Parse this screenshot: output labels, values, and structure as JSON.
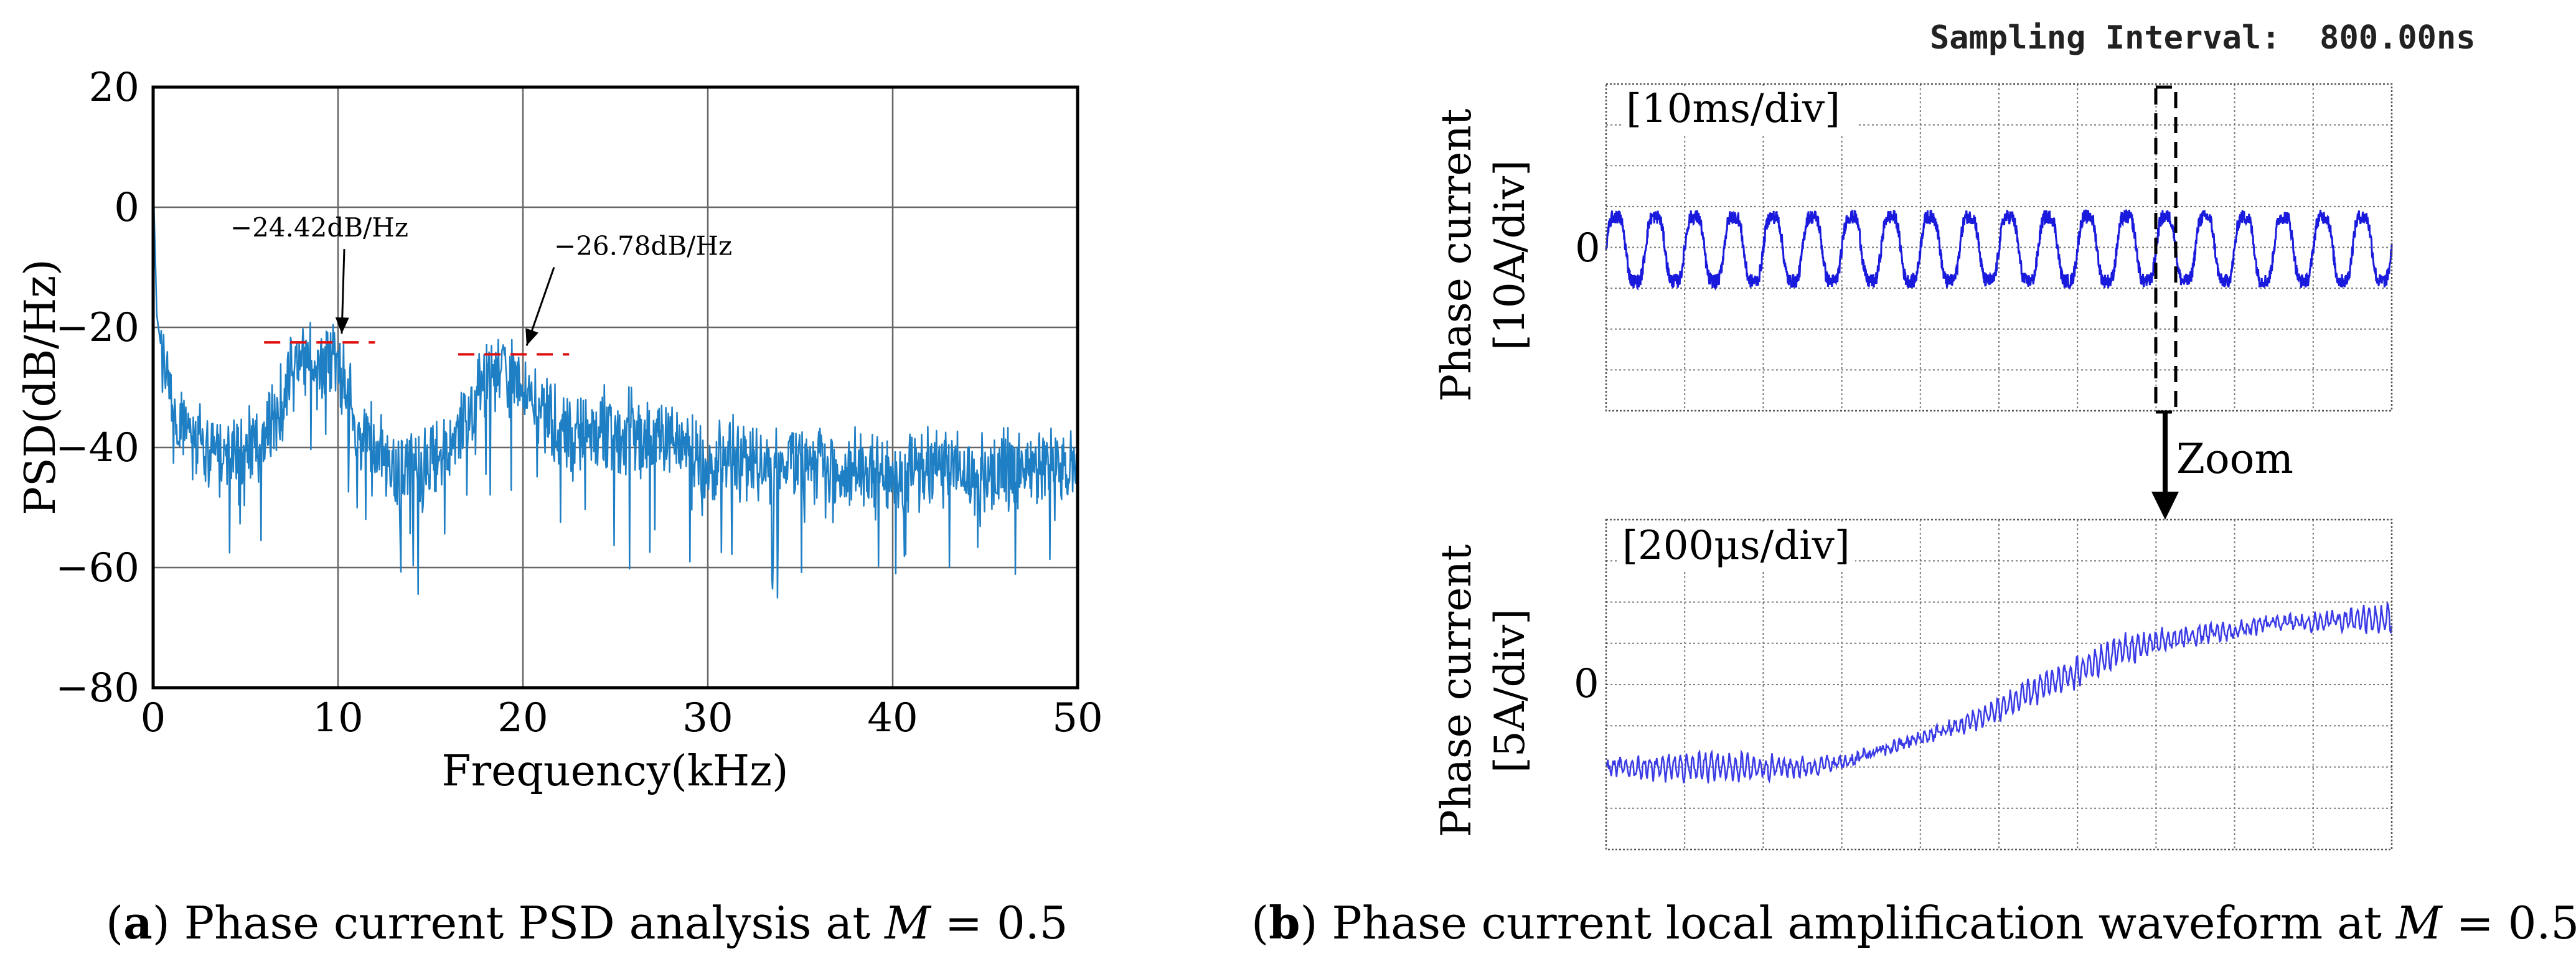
{
  "chart_data": [
    {
      "type": "line",
      "panel_label": "a",
      "title": "",
      "xlabel": "Frequency(kHz)",
      "ylabel": "PSD(dB/Hz)",
      "xlim": [
        0,
        50
      ],
      "ylim": [
        -80,
        20
      ],
      "xticks": [
        0,
        10,
        20,
        30,
        40,
        50
      ],
      "yticks": [
        20,
        0,
        -20,
        -40,
        -60,
        -80
      ],
      "xtick_labels": [
        "0",
        "10",
        "20",
        "30",
        "40",
        "50"
      ],
      "ytick_labels": [
        "20",
        "0",
        "−20",
        "−40",
        "−60",
        "−80"
      ],
      "grid": true,
      "line_color": "#1f7fc4",
      "series": [
        {
          "name": "Phase current PSD",
          "x": [
            0,
            0.2,
            0.5,
            1,
            1.5,
            2,
            3,
            4,
            5,
            6,
            7,
            7.5,
            8,
            8.5,
            9,
            9.5,
            10,
            10.5,
            11,
            12,
            13,
            14,
            15,
            16,
            17,
            18,
            19,
            20,
            21,
            22,
            23,
            24,
            25,
            26,
            27,
            28,
            29,
            30,
            32,
            34,
            36,
            38,
            40,
            42,
            44,
            46,
            48,
            50
          ],
          "y": [
            5,
            -18,
            -25,
            -33,
            -36,
            -38,
            -40,
            -41,
            -40,
            -38,
            -33,
            -28,
            -25,
            -24,
            -27,
            -25,
            -26,
            -31,
            -36,
            -40,
            -44,
            -44,
            -43,
            -40,
            -34,
            -29,
            -27,
            -30,
            -35,
            -38,
            -38,
            -37,
            -37,
            -38,
            -39,
            -40,
            -41,
            -42,
            -42,
            -43,
            -43,
            -44,
            -44,
            -43,
            -44,
            -44,
            -43,
            -43
          ]
        }
      ],
      "markers": [
        {
          "label": "−24.42dB/Hz",
          "freq_khz": 10,
          "level_db": -22.5,
          "span_khz": [
            6,
            12
          ]
        },
        {
          "label": "−26.78dB/Hz",
          "freq_khz": 20,
          "level_db": -24.5,
          "span_khz": [
            16.5,
            22.5
          ]
        }
      ]
    },
    {
      "type": "line",
      "panel_label": "b-top",
      "title": "",
      "xlabel": "",
      "ylabel_line1": "Phase current",
      "ylabel_line2": "[10A/div]",
      "scale_label": "[10ms/div]",
      "zero_label": "0",
      "divisions_x": 10,
      "divisions_y": 8,
      "line_color": "#1a1adc",
      "series": [
        {
          "name": "Phase current",
          "periods": 20,
          "amplitude_div": 1.0,
          "offset_div": 0
        }
      ]
    },
    {
      "type": "line",
      "panel_label": "b-bottom",
      "title": "",
      "xlabel": "",
      "ylabel_line1": "Phase current",
      "ylabel_line2": "[5A/div]",
      "scale_label": "[200μs/div]",
      "zero_label": "0",
      "divisions_x": 10,
      "divisions_y": 8,
      "line_color": "#3a3ae6",
      "series": [
        {
          "name": "Phase current (zoomed)",
          "x_div": [
            0,
            1,
            2,
            2.5,
            3,
            3.5,
            4,
            4.5,
            5,
            5.5,
            6,
            6.5,
            7,
            7.5,
            8,
            8.5,
            9,
            9.5,
            10
          ],
          "y_div": [
            -2.0,
            -2.0,
            -2.0,
            -2.0,
            -1.9,
            -1.6,
            -1.3,
            -1.0,
            -0.6,
            -0.1,
            0.3,
            0.8,
            1.0,
            1.2,
            1.3,
            1.5,
            1.5,
            1.6,
            1.6
          ]
        }
      ]
    }
  ],
  "sampling_interval": "Sampling Interval:  800.00ns",
  "zoom_label": "Zoom",
  "captions": {
    "a": {
      "prefix": "(",
      "letter": "a",
      "body": ") Phase current PSD analysis at ",
      "var": "M",
      "suffix": " = 0.5"
    },
    "b": {
      "prefix": "(",
      "letter": "b",
      "body": ") Phase current local amplification waveform at ",
      "var": "M",
      "suffix": " = 0.5"
    }
  }
}
